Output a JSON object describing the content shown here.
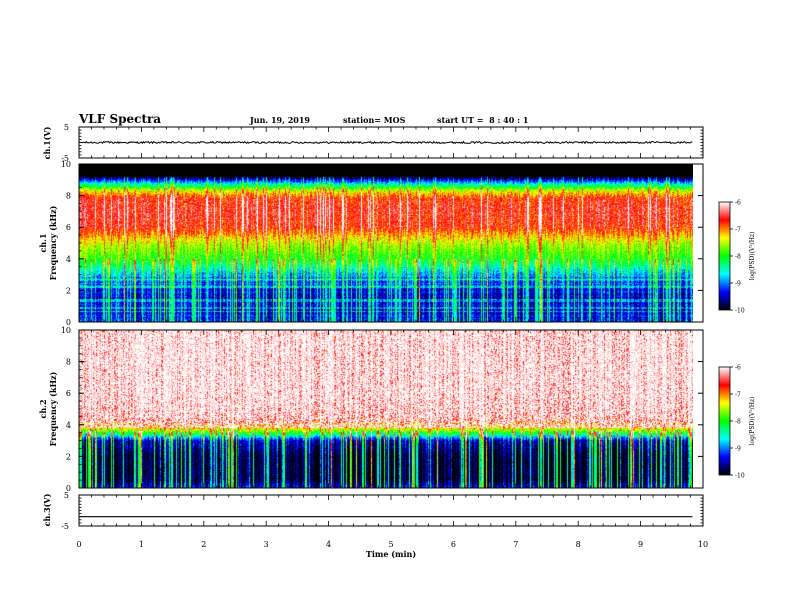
{
  "header": {
    "title": "VLF Spectra",
    "date": "Jun. 19, 2019",
    "station": "station= MOS",
    "start_ut": "start UT =  8 : 40 : 1"
  },
  "chart_data": [
    {
      "type": "line",
      "panel": "ch1-waveform",
      "ylabel": "ch.1(V)",
      "ylim": [
        -5,
        5
      ],
      "yticks": [
        5,
        -5
      ],
      "x": [
        0,
        1,
        2,
        3,
        4,
        5,
        6,
        7,
        8,
        9,
        9.83
      ],
      "values": [
        0.0,
        0.0,
        0.0,
        0.0,
        0.0,
        0.0,
        0.0,
        0.0,
        0.0,
        0.0,
        0.0
      ]
    },
    {
      "type": "heatmap",
      "panel": "ch1-spectrogram",
      "ylabel_line1": "ch.1",
      "ylabel_line2": "Frequency (kHz)",
      "ylim": [
        0,
        10
      ],
      "yticks": [
        0,
        2,
        4,
        6,
        8,
        10
      ],
      "xlim": [
        0,
        10
      ],
      "data_end_min": 9.83,
      "zlim": [
        -10,
        -6
      ],
      "profile_khz": [
        0,
        0.4,
        1,
        2,
        3,
        4,
        5,
        6,
        7,
        7.8,
        8.3,
        8.8,
        9.2,
        10
      ],
      "profile_logpsd": [
        -9.3,
        -9.4,
        -9.5,
        -9.4,
        -8.9,
        -8.0,
        -7.5,
        -6.7,
        -6.6,
        -6.7,
        -7.4,
        -8.8,
        -10,
        -10
      ]
    },
    {
      "type": "heatmap",
      "panel": "ch2-spectrogram",
      "ylabel_line1": "ch.2",
      "ylabel_line2": "Frequency (kHz)",
      "ylim": [
        0,
        10
      ],
      "yticks": [
        0,
        2,
        4,
        6,
        8,
        10
      ],
      "xlim": [
        0,
        10
      ],
      "data_end_min": 9.83,
      "zlim": [
        -10,
        -6
      ],
      "profile_khz": [
        0,
        0.5,
        1,
        2,
        3,
        3.4,
        3.8,
        4.5,
        6,
        8,
        10
      ],
      "profile_logpsd": [
        -9.4,
        -9.9,
        -9.9,
        -9.9,
        -9.5,
        -8.3,
        -7.2,
        -6.4,
        -6.2,
        -6.2,
        -6.2
      ]
    },
    {
      "type": "line",
      "panel": "ch3-waveform",
      "ylabel": "ch.3(V)",
      "ylim": [
        -5,
        5
      ],
      "yticks": [
        5,
        -5
      ],
      "x": [
        0,
        1,
        2,
        3,
        4,
        5,
        6,
        7,
        8,
        9,
        9.83
      ],
      "values": [
        -2.0,
        -2.0,
        -2.0,
        -2.0,
        -2.0,
        -2.0,
        -2.0,
        -2.0,
        -2.0,
        -2.0,
        -2.0
      ]
    }
  ],
  "xaxis": {
    "label": "Time (min)",
    "ticks": [
      0,
      1,
      2,
      3,
      4,
      5,
      6,
      7,
      8,
      9,
      10
    ],
    "xlim": [
      0,
      10
    ]
  },
  "colorbar": {
    "label": "log(PSD)(V²/Hz)",
    "ticks": [
      -6,
      -7,
      -8,
      -9,
      -10
    ],
    "colors": [
      "#000000",
      "#0000ff",
      "#00ffff",
      "#00ff00",
      "#ffff00",
      "#ff0000",
      "#ffffff"
    ]
  }
}
